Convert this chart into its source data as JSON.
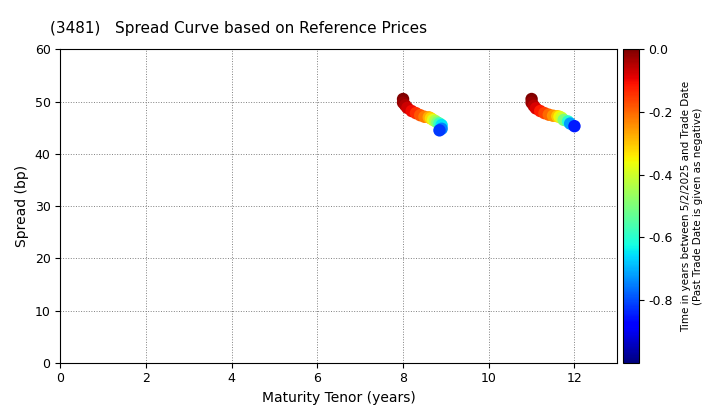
{
  "title": "(3481)   Spread Curve based on Reference Prices",
  "xlabel": "Maturity Tenor (years)",
  "ylabel": "Spread (bp)",
  "colorbar_label": "Time in years between 5/2/2025 and Trade Date\n(Past Trade Date is given as negative)",
  "xlim": [
    0,
    13
  ],
  "ylim": [
    0,
    60
  ],
  "xticks": [
    0,
    2,
    4,
    6,
    8,
    10,
    12
  ],
  "yticks": [
    0,
    10,
    20,
    30,
    40,
    50,
    60
  ],
  "cmap_min": -1.0,
  "cmap_max": 0.0,
  "colorbar_ticks": [
    0.0,
    -0.2,
    -0.4,
    -0.6,
    -0.8
  ],
  "cluster1": {
    "x": [
      8.0,
      8.0,
      8.05,
      8.1,
      8.2,
      8.3,
      8.4,
      8.5,
      8.6,
      8.65,
      8.7,
      8.75,
      8.8,
      8.85,
      8.9,
      8.9,
      8.85
    ],
    "y": [
      50.5,
      49.8,
      49.3,
      48.8,
      48.2,
      47.8,
      47.4,
      47.1,
      47.0,
      46.8,
      46.5,
      46.3,
      46.0,
      45.8,
      45.5,
      44.8,
      44.5
    ],
    "color": [
      0.0,
      -0.02,
      -0.04,
      -0.07,
      -0.1,
      -0.14,
      -0.18,
      -0.22,
      -0.27,
      -0.32,
      -0.38,
      -0.44,
      -0.5,
      -0.58,
      -0.65,
      -0.75,
      -0.82
    ]
  },
  "cluster2": {
    "x": [
      11.0,
      11.0,
      11.05,
      11.1,
      11.2,
      11.3,
      11.4,
      11.5,
      11.6,
      11.65,
      11.7,
      11.75,
      11.85,
      11.9,
      12.0
    ],
    "y": [
      50.5,
      49.8,
      49.2,
      48.7,
      48.2,
      47.8,
      47.5,
      47.3,
      47.2,
      47.1,
      46.9,
      46.5,
      46.2,
      45.8,
      45.3
    ],
    "color": [
      0.0,
      -0.02,
      -0.05,
      -0.08,
      -0.12,
      -0.16,
      -0.2,
      -0.25,
      -0.3,
      -0.35,
      -0.4,
      -0.5,
      -0.6,
      -0.72,
      -0.85
    ]
  }
}
